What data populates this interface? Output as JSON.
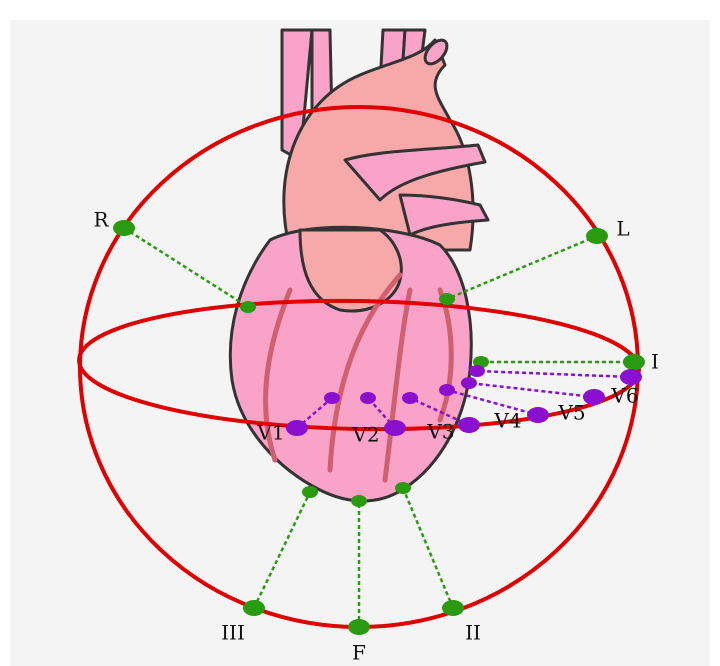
{
  "limb_leads": [
    {
      "label": "R"
    },
    {
      "label": "L"
    },
    {
      "label": "I"
    },
    {
      "label": "III"
    },
    {
      "label": "F"
    },
    {
      "label": "II"
    }
  ],
  "chest_leads": [
    {
      "label": "V1"
    },
    {
      "label": "V2"
    },
    {
      "label": "V3"
    },
    {
      "label": "V4"
    },
    {
      "label": "V5"
    },
    {
      "label": "V6"
    }
  ]
}
